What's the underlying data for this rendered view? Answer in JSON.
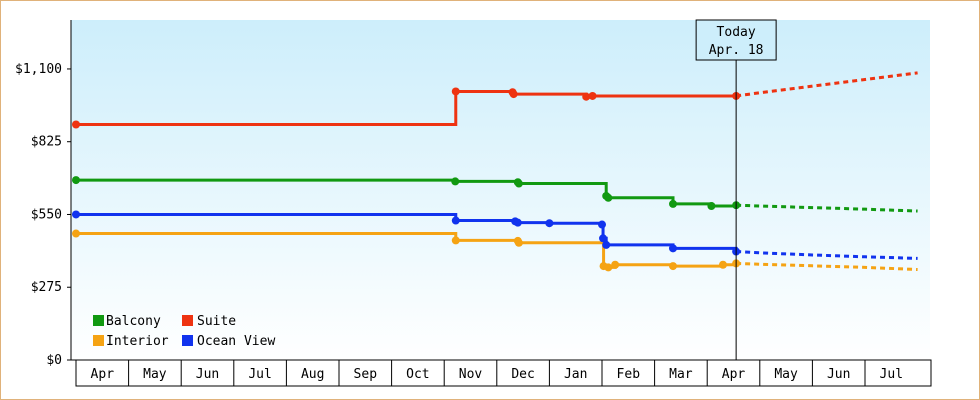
{
  "chart_data": {
    "type": "line",
    "title": "",
    "xlabel": "",
    "ylabel": "",
    "x_tick_labels": [
      "Apr",
      "May",
      "Jun",
      "Jul",
      "Aug",
      "Sep",
      "Oct",
      "Nov",
      "Dec",
      "Jan",
      "Feb",
      "Mar",
      "Apr",
      "May",
      "Jun",
      "Jul"
    ],
    "y_ticks": [
      0,
      275,
      550,
      825,
      1100
    ],
    "y_tick_labels": [
      "$0",
      "$275",
      "$550",
      "$825",
      "$1,100"
    ],
    "ylim": [
      0,
      1285
    ],
    "grid": false,
    "legend_position": "bottom-left",
    "today_marker": {
      "line1": "Today",
      "line2": "Apr. 18",
      "x": 12.55
    },
    "series": [
      {
        "name": "Balcony",
        "color": "#119911",
        "points": [
          [
            0,
            680
          ],
          [
            7.2,
            680
          ],
          [
            7.21,
            675
          ],
          [
            8.4,
            672
          ],
          [
            8.42,
            667
          ],
          [
            10.01,
            667
          ],
          [
            10.08,
            620
          ],
          [
            10.12,
            613
          ],
          [
            11.3,
            613
          ],
          [
            11.35,
            590
          ],
          [
            12.0,
            590
          ],
          [
            12.08,
            582
          ],
          [
            12.2,
            582
          ],
          [
            12.55,
            585
          ]
        ],
        "forecast": [
          [
            12.55,
            585
          ],
          [
            13.0,
            582
          ],
          [
            14.0,
            576
          ],
          [
            15.0,
            570
          ],
          [
            16.0,
            563
          ]
        ]
      },
      {
        "name": "Suite",
        "color": "#ee3311",
        "points": [
          [
            0,
            890
          ],
          [
            7.18,
            890
          ],
          [
            7.22,
            1015
          ],
          [
            8.3,
            1012
          ],
          [
            8.32,
            1005
          ],
          [
            9.6,
            1005
          ],
          [
            9.7,
            995
          ],
          [
            9.82,
            998
          ],
          [
            10.1,
            998
          ],
          [
            11.3,
            998
          ],
          [
            12.55,
            998
          ]
        ],
        "forecast": [
          [
            12.55,
            998
          ],
          [
            13.0,
            1010
          ],
          [
            14.0,
            1035
          ],
          [
            15.0,
            1060
          ],
          [
            16.0,
            1085
          ]
        ]
      },
      {
        "name": "Interior",
        "color": "#f5a314",
        "points": [
          [
            0,
            478
          ],
          [
            7.2,
            478
          ],
          [
            7.22,
            452
          ],
          [
            8.4,
            450
          ],
          [
            8.42,
            443
          ],
          [
            10.01,
            443
          ],
          [
            10.03,
            355
          ],
          [
            10.12,
            350
          ],
          [
            10.25,
            360
          ],
          [
            11.3,
            360
          ],
          [
            11.35,
            355
          ],
          [
            12.0,
            355
          ],
          [
            12.15,
            355
          ],
          [
            12.3,
            360
          ],
          [
            12.55,
            365
          ]
        ],
        "forecast": [
          [
            12.55,
            365
          ],
          [
            13.0,
            362
          ],
          [
            14.0,
            356
          ],
          [
            15.0,
            350
          ],
          [
            16.0,
            342
          ]
        ]
      },
      {
        "name": "Ocean View",
        "color": "#1133ee",
        "points": [
          [
            0,
            550
          ],
          [
            7.2,
            550
          ],
          [
            7.22,
            527
          ],
          [
            8.35,
            524
          ],
          [
            8.4,
            519
          ],
          [
            9.0,
            517
          ],
          [
            10.0,
            512
          ],
          [
            10.02,
            460
          ],
          [
            10.08,
            435
          ],
          [
            11.3,
            435
          ],
          [
            11.35,
            422
          ],
          [
            12.0,
            422
          ],
          [
            12.1,
            422
          ],
          [
            12.55,
            410
          ]
        ],
        "forecast": [
          [
            12.55,
            410
          ],
          [
            13.0,
            405
          ],
          [
            14.0,
            397
          ],
          [
            15.0,
            390
          ],
          [
            16.0,
            384
          ]
        ]
      }
    ],
    "legend": [
      {
        "label": "Balcony",
        "color": "#119911"
      },
      {
        "label": "Suite",
        "color": "#ee3311"
      },
      {
        "label": "Interior",
        "color": "#f5a314"
      },
      {
        "label": "Ocean View",
        "color": "#1133ee"
      }
    ]
  }
}
